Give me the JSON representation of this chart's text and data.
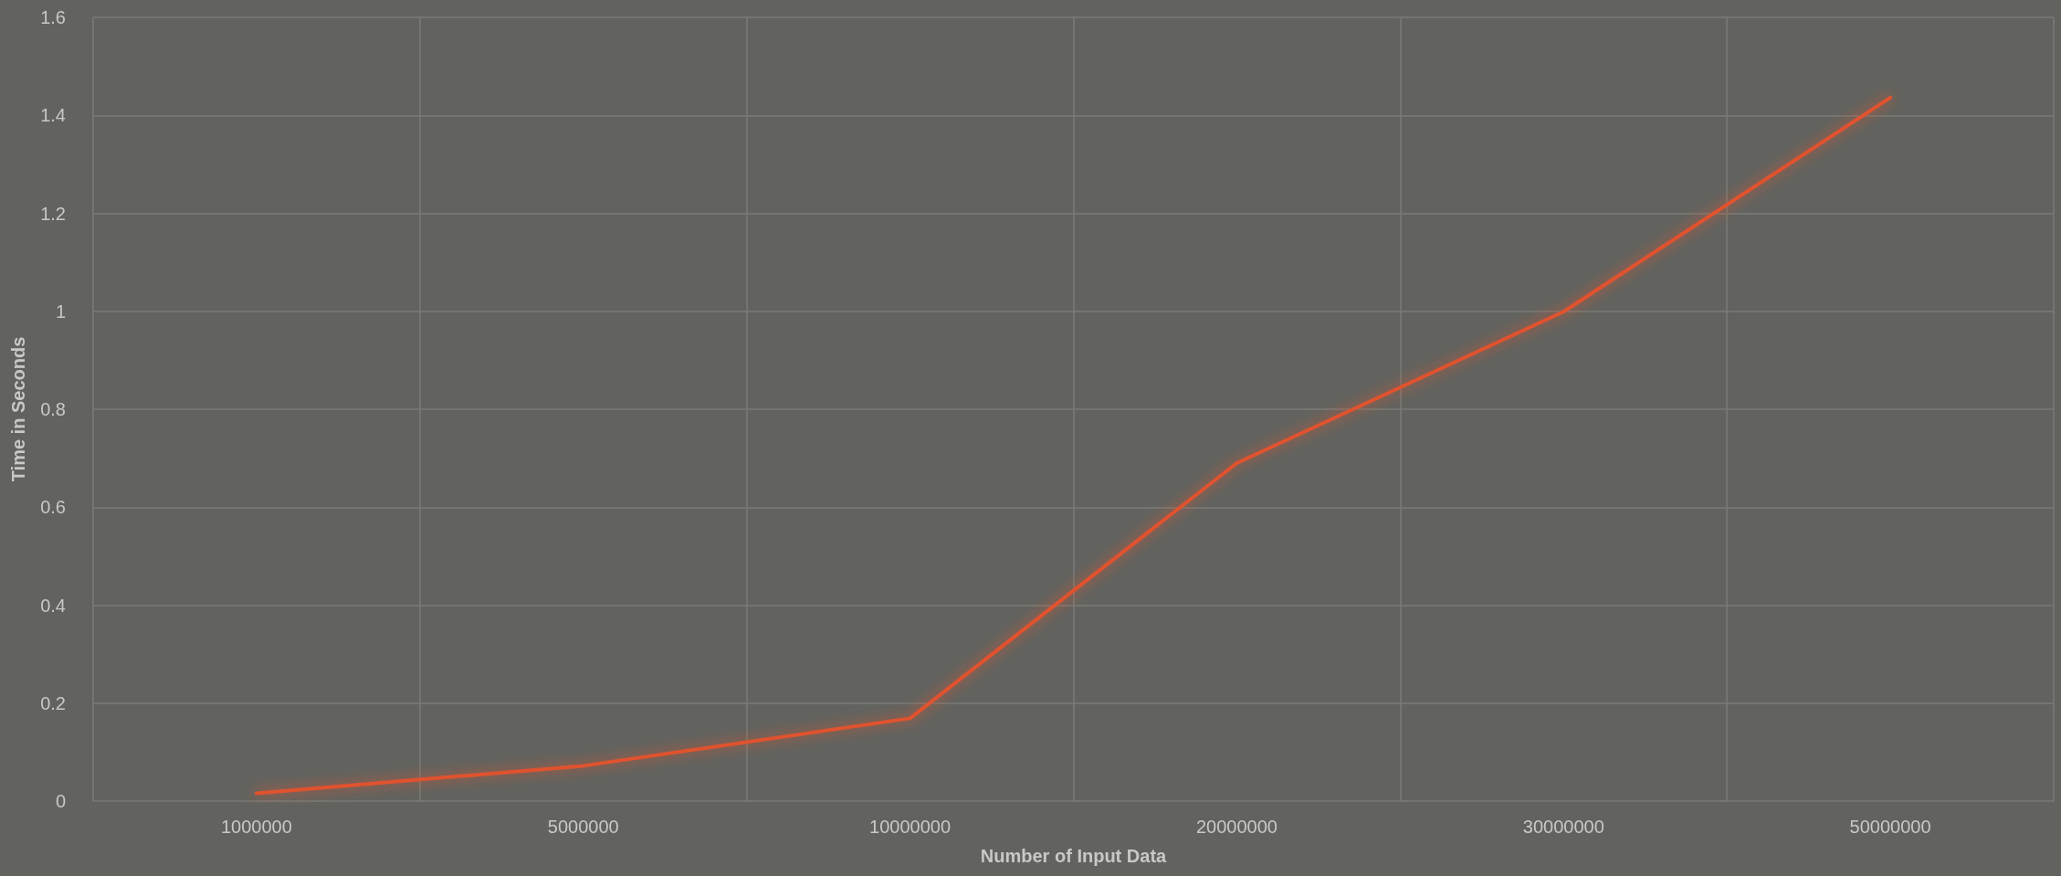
{
  "chart_data": {
    "type": "line",
    "xlabel": "Number of Input Data",
    "ylabel": "Time in Seconds",
    "categories": [
      "1000000",
      "5000000",
      "10000000",
      "20000000",
      "30000000",
      "50000000"
    ],
    "series": [
      {
        "color": "#e0522f",
        "values": [
          0.016,
          0.072,
          0.169,
          0.69,
          0.999,
          1.436
        ]
      }
    ],
    "ylim": [
      0,
      1.6
    ],
    "yticks": [
      0,
      0.2,
      0.4,
      0.6,
      0.8,
      1,
      1.2,
      1.4,
      1.6
    ],
    "grid": true,
    "marker": "none",
    "line_style": "solid"
  }
}
